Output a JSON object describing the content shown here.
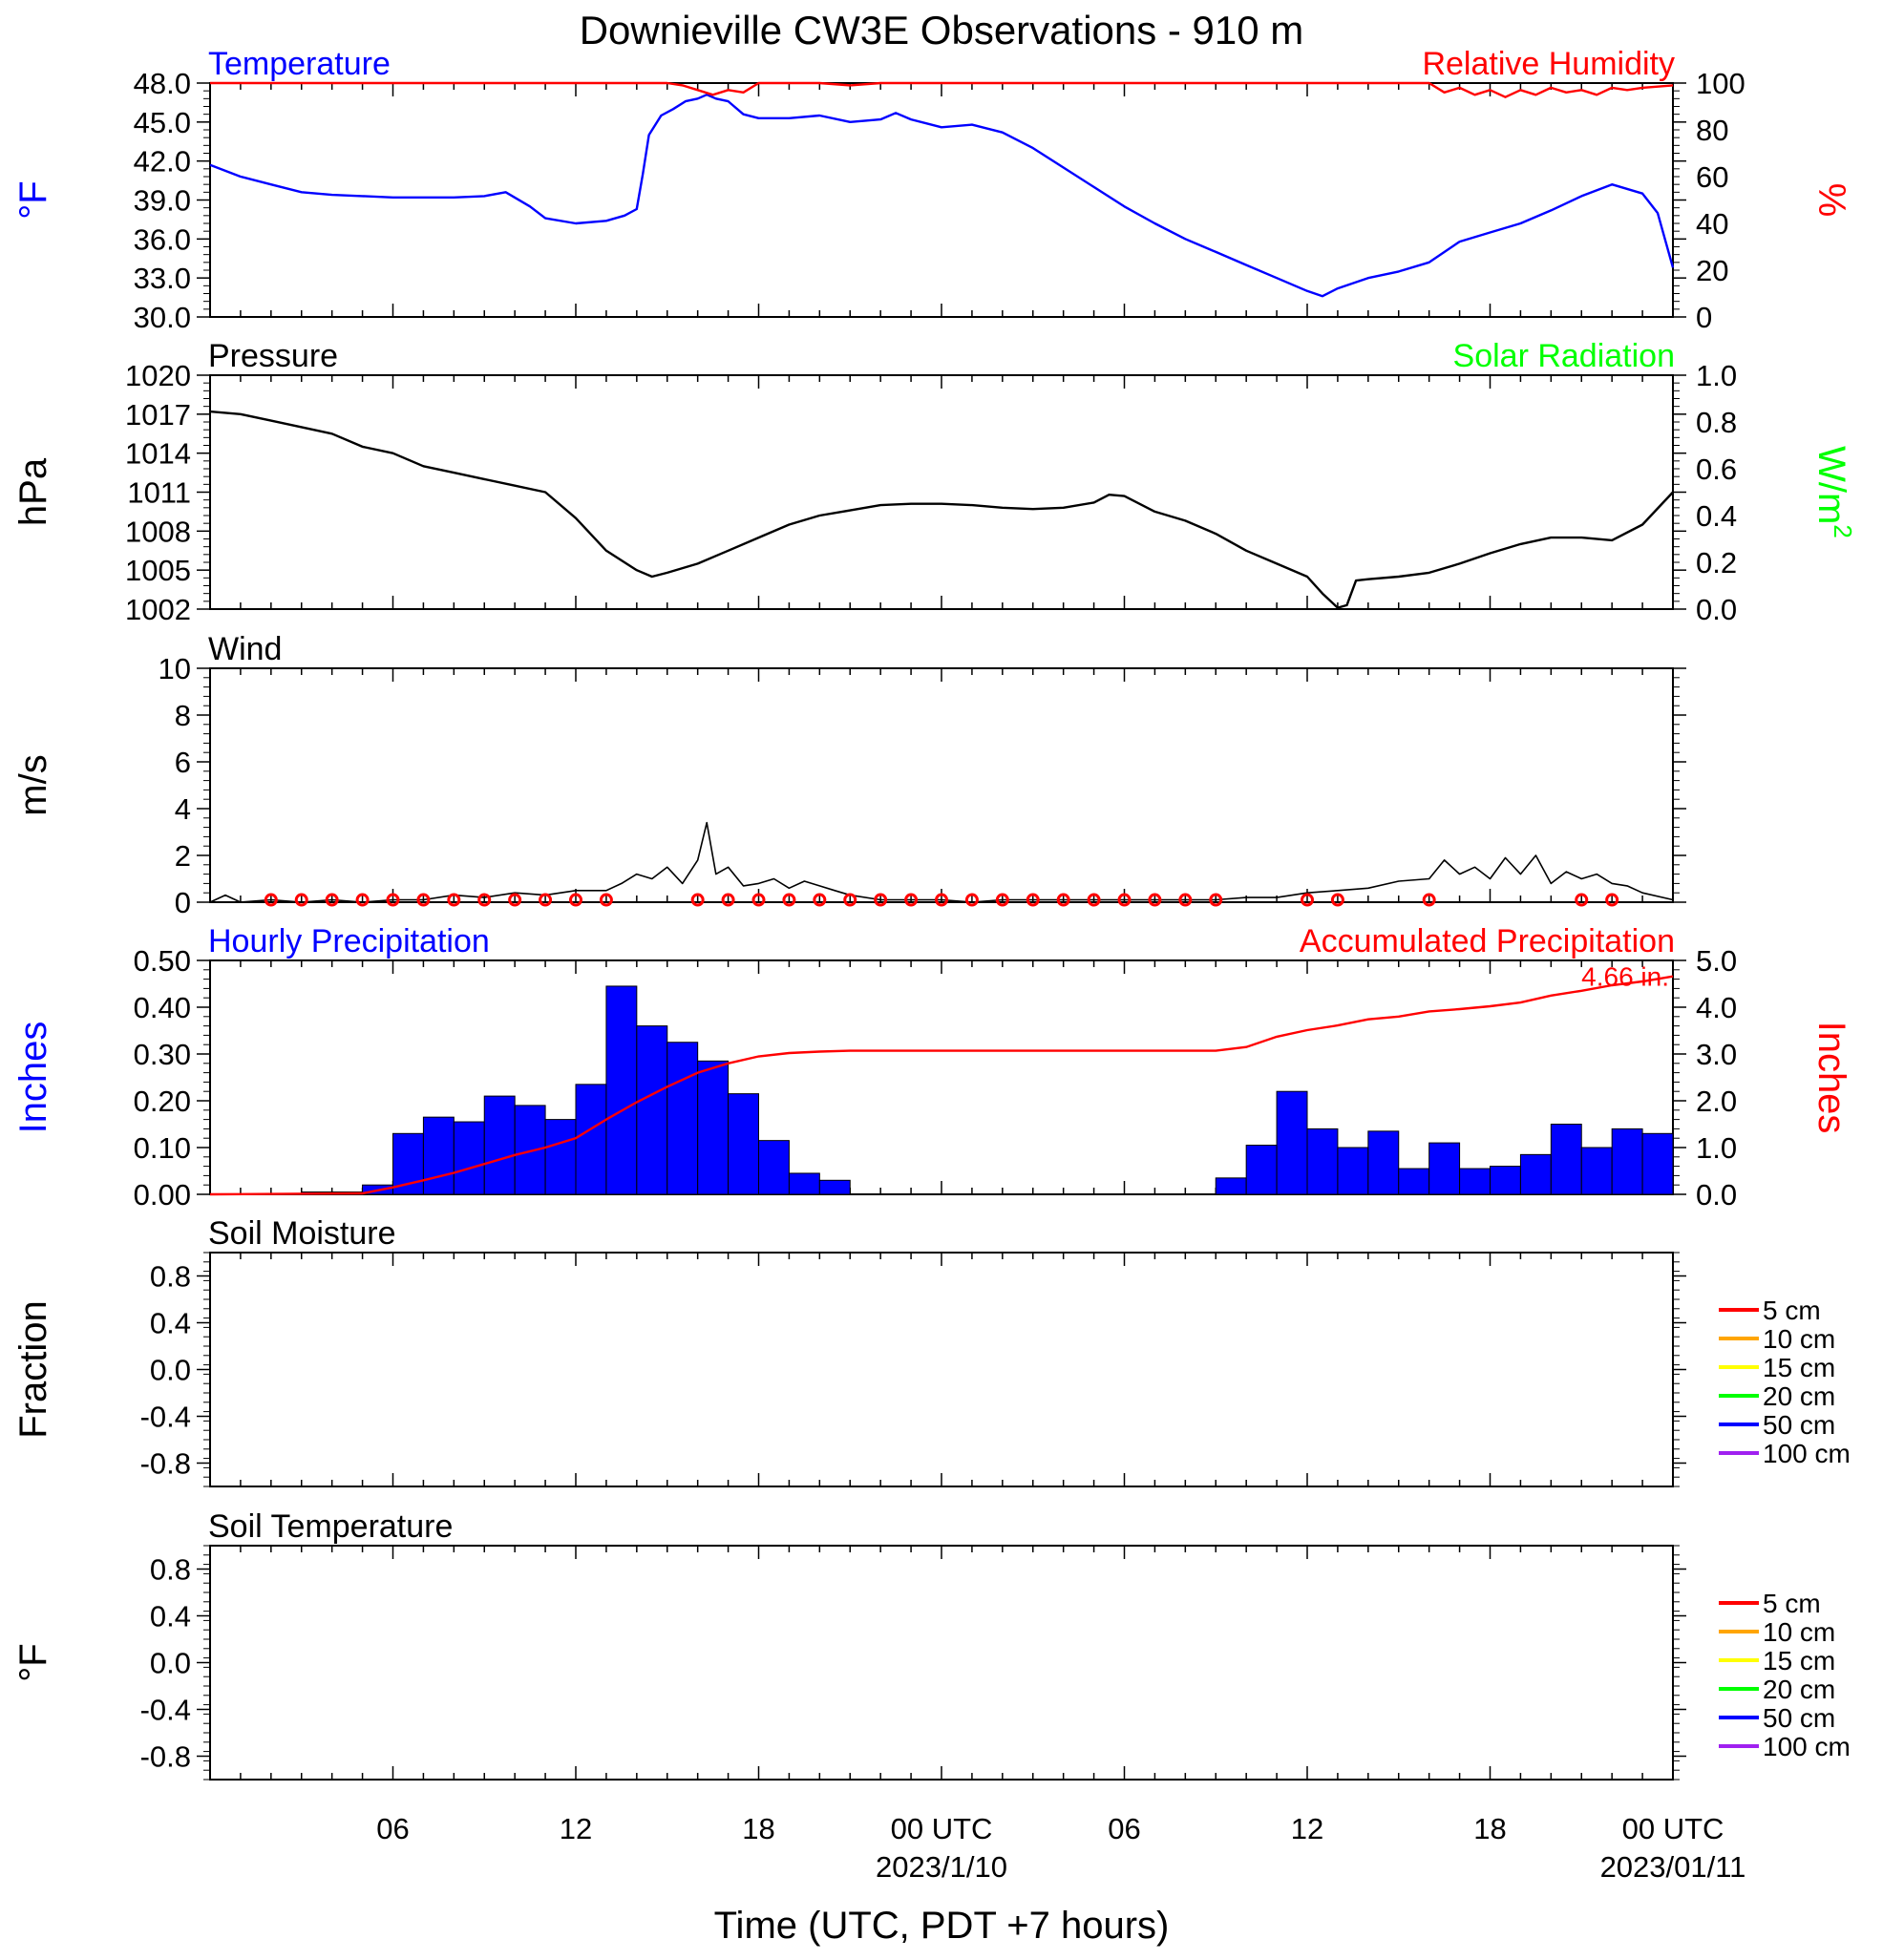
{
  "figure": {
    "title": "Downieville CW3E Observations - 910 m",
    "xlabel": "Time (UTC, PDT +7 hours)",
    "time_ticks": [
      "06",
      "12",
      "18",
      "00 UTC",
      "06",
      "12",
      "18",
      "00 UTC"
    ],
    "date_labels": [
      "2023/1/10",
      "2023/01/11"
    ]
  },
  "colors": {
    "temperature": "#0000ff",
    "humidity": "#ff0000",
    "pressure": "#000000",
    "solar": "#00ff00",
    "wind": "#000000",
    "wind_marker": "#ff0000",
    "hourly_precip": "#0000ff",
    "accum_precip": "#ff0000",
    "soil_5cm": "#ff0000",
    "soil_10cm": "#ffa500",
    "soil_15cm": "#ffff00",
    "soil_20cm": "#00ff00",
    "soil_50cm": "#0000ff",
    "soil_100cm": "#a020f0"
  },
  "chart_data": [
    {
      "type": "line",
      "panel": "temperature",
      "title_left": "Temperature",
      "title_right": "Relative Humidity",
      "ylabel_left": "°F",
      "ylabel_right": "%",
      "x_unit": "hours since 2023/1/9 00 UTC",
      "xlim": [
        0,
        48
      ],
      "ylim_left": [
        30.0,
        48.0
      ],
      "ylim_right": [
        0,
        100
      ],
      "yticks_left": [
        "48.0",
        "45.0",
        "42.0",
        "39.0",
        "36.0",
        "33.0",
        "30.0"
      ],
      "yticks_right": [
        "100",
        "80",
        "60",
        "40",
        "20",
        "0"
      ],
      "series": [
        {
          "name": "Temperature",
          "axis": "left",
          "x": [
            0,
            1,
            2,
            3,
            4,
            5,
            6,
            7,
            8,
            9,
            9.7,
            10.5,
            11,
            12,
            13,
            13.6,
            14,
            14.2,
            14.4,
            14.8,
            15.2,
            15.6,
            16,
            16.3,
            16.6,
            17,
            17.5,
            18,
            19,
            20,
            21,
            22,
            22.5,
            23,
            24,
            25,
            26,
            27,
            28,
            29,
            30,
            31,
            32,
            33,
            34,
            35,
            36,
            36.5,
            37,
            38,
            39,
            40,
            41,
            42,
            43,
            44,
            45,
            46,
            47,
            47.5,
            48
          ],
          "y": [
            41.7,
            40.8,
            40.2,
            39.6,
            39.4,
            39.3,
            39.2,
            39.2,
            39.2,
            39.3,
            39.6,
            38.5,
            37.6,
            37.2,
            37.4,
            37.8,
            38.3,
            41.0,
            44.0,
            45.5,
            46.0,
            46.6,
            46.8,
            47.1,
            46.8,
            46.6,
            45.6,
            45.3,
            45.3,
            45.5,
            45.0,
            45.2,
            45.7,
            45.2,
            44.6,
            44.8,
            44.2,
            43.0,
            41.5,
            40.0,
            38.5,
            37.2,
            36.0,
            35.0,
            34.0,
            33.0,
            32.0,
            31.6,
            32.2,
            33.0,
            33.5,
            34.2,
            35.8,
            36.5,
            37.2,
            38.2,
            39.3,
            40.2,
            39.5,
            38.0,
            33.8
          ]
        },
        {
          "name": "Relative Humidity",
          "axis": "right",
          "x": [
            0,
            15,
            15.5,
            16,
            16.5,
            17,
            17.5,
            18,
            20,
            21,
            22,
            40,
            40.5,
            41,
            41.5,
            42,
            42.5,
            43,
            43.5,
            44,
            44.5,
            45,
            45.5,
            46,
            46.5,
            47,
            48
          ],
          "y": [
            100,
            100,
            99,
            97,
            95,
            97,
            96,
            100,
            100,
            99,
            100,
            100,
            96,
            98,
            95,
            97,
            94,
            97,
            95,
            98,
            96,
            97,
            95,
            98,
            97,
            98,
            99
          ]
        }
      ]
    },
    {
      "type": "line",
      "panel": "pressure",
      "title_left": "Pressure",
      "title_right": "Solar Radiation",
      "ylabel_left": "hPa",
      "ylabel_right": "W/m2",
      "xlim": [
        0,
        48
      ],
      "ylim_left": [
        1002,
        1020
      ],
      "ylim_right": [
        0.0,
        1.0
      ],
      "yticks_left": [
        "1020",
        "1017",
        "1014",
        "1011",
        "1008",
        "1005",
        "1002"
      ],
      "yticks_right": [
        "1.0",
        "0.8",
        "0.6",
        "0.4",
        "0.2",
        "0.0"
      ],
      "series": [
        {
          "name": "Pressure",
          "axis": "left",
          "x": [
            0,
            1,
            2,
            3,
            4,
            5,
            6,
            7,
            8,
            9,
            10,
            11,
            12,
            13,
            14,
            14.5,
            15,
            16,
            17,
            18,
            19,
            20,
            21,
            22,
            23,
            24,
            25,
            26,
            27,
            28,
            29,
            29.5,
            30,
            31,
            32,
            33,
            34,
            35,
            36,
            36.5,
            37,
            37.3,
            37.6,
            38,
            39,
            40,
            41,
            42,
            43,
            44,
            45,
            46,
            47,
            48
          ],
          "y": [
            1017.2,
            1017.0,
            1016.5,
            1016.0,
            1015.5,
            1014.5,
            1014.0,
            1013.0,
            1012.5,
            1012.0,
            1011.5,
            1011.0,
            1009.0,
            1006.5,
            1005.0,
            1004.5,
            1004.8,
            1005.5,
            1006.5,
            1007.5,
            1008.5,
            1009.2,
            1009.6,
            1010.0,
            1010.1,
            1010.1,
            1010.0,
            1009.8,
            1009.7,
            1009.8,
            1010.2,
            1010.8,
            1010.7,
            1009.5,
            1008.8,
            1007.8,
            1006.5,
            1005.5,
            1004.5,
            1003.2,
            1002.1,
            1002.3,
            1004.2,
            1004.3,
            1004.5,
            1004.8,
            1005.5,
            1006.3,
            1007.0,
            1007.5,
            1007.5,
            1007.3,
            1008.5,
            1011.0
          ]
        }
      ]
    },
    {
      "type": "line",
      "panel": "wind",
      "title_left": "Wind",
      "ylabel_left": "m/s",
      "xlim": [
        0,
        48
      ],
      "ylim_left": [
        0,
        10
      ],
      "yticks_left": [
        "10",
        "8",
        "6",
        "4",
        "2",
        "0"
      ],
      "series": [
        {
          "name": "Wind",
          "axis": "left",
          "x": [
            0,
            0.5,
            1,
            2,
            3,
            4,
            5,
            6,
            7,
            8,
            9,
            10,
            11,
            12,
            13,
            13.5,
            14,
            14.5,
            15,
            15.5,
            16,
            16.3,
            16.6,
            17,
            17.5,
            18,
            18.5,
            19,
            19.5,
            20,
            20.5,
            21,
            22,
            23,
            24,
            25,
            26,
            27,
            28,
            29,
            30,
            31,
            32,
            33,
            34,
            35,
            36,
            37,
            38,
            39,
            40,
            40.5,
            41,
            41.5,
            42,
            42.5,
            43,
            43.5,
            44,
            44.5,
            45,
            45.5,
            46,
            46.5,
            47,
            48
          ],
          "y": [
            0,
            0.3,
            0,
            0.1,
            0,
            0.1,
            0,
            0.1,
            0.1,
            0.3,
            0.2,
            0.4,
            0.3,
            0.5,
            0.5,
            0.8,
            1.2,
            1.0,
            1.5,
            0.8,
            1.8,
            3.4,
            1.2,
            1.5,
            0.7,
            0.8,
            1.0,
            0.6,
            0.9,
            0.7,
            0.5,
            0.3,
            0.1,
            0.1,
            0.1,
            0,
            0.1,
            0.1,
            0.1,
            0.1,
            0.1,
            0.1,
            0.1,
            0.1,
            0.2,
            0.2,
            0.4,
            0.5,
            0.6,
            0.9,
            1.0,
            1.8,
            1.2,
            1.5,
            1.0,
            1.9,
            1.2,
            2.0,
            0.8,
            1.3,
            1.0,
            1.2,
            0.8,
            0.7,
            0.4,
            0.1
          ]
        }
      ],
      "barb_markers": [
        2,
        3,
        4,
        5,
        6,
        7,
        8,
        9,
        10,
        11,
        12,
        13,
        16,
        17,
        18,
        19,
        20,
        21,
        22,
        23,
        24,
        25,
        26,
        27,
        28,
        29,
        30,
        31,
        32,
        33,
        36,
        37,
        40,
        45,
        46
      ]
    },
    {
      "type": "bar",
      "panel": "precipitation",
      "title_left": "Hourly Precipitation",
      "title_right": "Accumulated Precipitation",
      "ylabel_left": "Inches",
      "ylabel_right": "Inches",
      "annotation": "4.66 in.",
      "xlim": [
        0,
        48
      ],
      "ylim_left": [
        0.0,
        0.5
      ],
      "ylim_right": [
        0.0,
        5.0
      ],
      "yticks_left": [
        "0.50",
        "0.40",
        "0.30",
        "0.20",
        "0.10",
        "0.00"
      ],
      "yticks_right": [
        "5.0",
        "4.0",
        "3.0",
        "2.0",
        "1.0",
        "0.0"
      ],
      "hourly_start": [
        3,
        4,
        5,
        6,
        7,
        8,
        9,
        10,
        11,
        12,
        13,
        14,
        15,
        16,
        17,
        18,
        19,
        20,
        33,
        34,
        35,
        36,
        37,
        38,
        39,
        40,
        41,
        42,
        43,
        44,
        45,
        46,
        47
      ],
      "hourly_values": [
        0.005,
        0.005,
        0.02,
        0.13,
        0.165,
        0.155,
        0.21,
        0.19,
        0.16,
        0.235,
        0.445,
        0.36,
        0.325,
        0.285,
        0.215,
        0.115,
        0.045,
        0.03,
        0.035,
        0.105,
        0.22,
        0.14,
        0.1,
        0.135,
        0.055,
        0.11,
        0.055,
        0.06,
        0.085,
        0.15,
        0.1,
        0.14,
        0.13
      ],
      "accum_x": [
        0,
        5,
        6,
        7,
        8,
        9,
        10,
        11,
        12,
        13,
        14,
        15,
        16,
        17,
        18,
        19,
        20,
        21,
        33,
        34,
        35,
        36,
        37,
        38,
        39,
        40,
        41,
        42,
        43,
        44,
        45,
        46,
        47,
        48
      ],
      "accum_y": [
        0,
        0.02,
        0.15,
        0.3,
        0.46,
        0.65,
        0.84,
        1.0,
        1.2,
        1.6,
        1.97,
        2.3,
        2.6,
        2.8,
        2.95,
        3.02,
        3.05,
        3.07,
        3.07,
        3.15,
        3.37,
        3.51,
        3.61,
        3.74,
        3.8,
        3.91,
        3.96,
        4.02,
        4.1,
        4.25,
        4.35,
        4.47,
        4.55,
        4.66
      ]
    },
    {
      "type": "line",
      "panel": "soil_moisture",
      "title_left": "Soil Moisture",
      "ylabel_left": "Fraction",
      "xlim": [
        0,
        48
      ],
      "ylim_left": [
        -1.0,
        1.0
      ],
      "yticks_left": [
        "0.8",
        "0.4",
        "0.0",
        "-0.4",
        "-0.8"
      ],
      "legend": [
        "5 cm",
        "10 cm",
        "15 cm",
        "20 cm",
        "50 cm",
        "100 cm"
      ],
      "legend_position": "right"
    },
    {
      "type": "line",
      "panel": "soil_temperature",
      "title_left": "Soil Temperature",
      "ylabel_left": "°F",
      "xlim": [
        0,
        48
      ],
      "ylim_left": [
        -1.0,
        1.0
      ],
      "yticks_left": [
        "0.8",
        "0.4",
        "0.0",
        "-0.4",
        "-0.8"
      ],
      "legend": [
        "5 cm",
        "10 cm",
        "15 cm",
        "20 cm",
        "50 cm",
        "100 cm"
      ],
      "legend_position": "right"
    }
  ]
}
